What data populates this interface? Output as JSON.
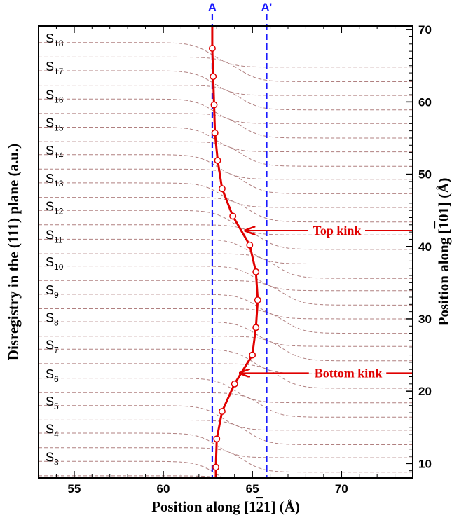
{
  "chart_data": {
    "type": "line",
    "xlabel": "Position along [1̅2̅1] (Å)",
    "xlabel_parts": [
      "Position along [1",
      "2",
      "1] (Å)"
    ],
    "ylabel_left": "Disregistry in the (111) plane (a.u.)",
    "ylabel_right": "Position along [̅1 01] (Å)",
    "ylabel_right_parts": [
      "Position along [",
      "1",
      "01] (Å)"
    ],
    "xlim": [
      53,
      74
    ],
    "ylim": [
      8,
      70.5
    ],
    "x_ticks": [
      55,
      60,
      65,
      70
    ],
    "y_ticks": [
      10,
      20,
      30,
      40,
      50,
      60,
      70
    ],
    "grid": false,
    "vertical_lines": [
      {
        "label": "A",
        "x": 62.75,
        "color": "#1a1aff"
      },
      {
        "label": "A’",
        "x": 65.8,
        "color": "#1a1aff"
      }
    ],
    "planes": {
      "names": [
        {
          "base": "S",
          "sub": "3",
          "y": 9.5
        },
        {
          "base": "S",
          "sub": "4",
          "y": 13.4
        },
        {
          "base": "S",
          "sub": "5",
          "y": 17.2
        },
        {
          "base": "S",
          "sub": "6",
          "y": 21.0
        },
        {
          "base": "S",
          "sub": "7",
          "y": 25.0
        },
        {
          "base": "S",
          "sub": "8",
          "y": 28.8
        },
        {
          "base": "S",
          "sub": "9",
          "y": 32.6
        },
        {
          "base": "S",
          "sub": "10",
          "y": 36.5
        },
        {
          "base": "S",
          "sub": "11",
          "y": 40.2
        },
        {
          "base": "S",
          "sub": "12",
          "y": 44.2
        },
        {
          "base": "S",
          "sub": "13",
          "y": 48.0
        },
        {
          "base": "S",
          "sub": "14",
          "y": 51.9
        },
        {
          "base": "S",
          "sub": "15",
          "y": 55.7
        },
        {
          "base": "S",
          "sub": "16",
          "y": 59.6
        },
        {
          "base": "S",
          "sub": "17",
          "y": 63.5
        },
        {
          "base": "S",
          "sub": "18",
          "y": 67.4
        }
      ],
      "curve_color": "#b08080"
    },
    "series": [
      {
        "color": "#e00000",
        "x": [
          62.95,
          63.0,
          63.3,
          64.0,
          65.0,
          65.2,
          65.3,
          65.2,
          64.85,
          63.9,
          63.3,
          63.05,
          62.9,
          62.85,
          62.8,
          62.75
        ],
        "y": [
          9.5,
          13.4,
          17.2,
          21.0,
          25.0,
          28.8,
          32.6,
          36.5,
          40.2,
          44.2,
          48.0,
          51.9,
          55.7,
          59.6,
          63.5,
          67.4
        ]
      }
    ],
    "annotations": [
      {
        "text": "Top kink",
        "x": 64.5,
        "y": 42.2
      },
      {
        "text": "Bottom kink",
        "x": 64.2,
        "y": 22.5
      }
    ]
  }
}
